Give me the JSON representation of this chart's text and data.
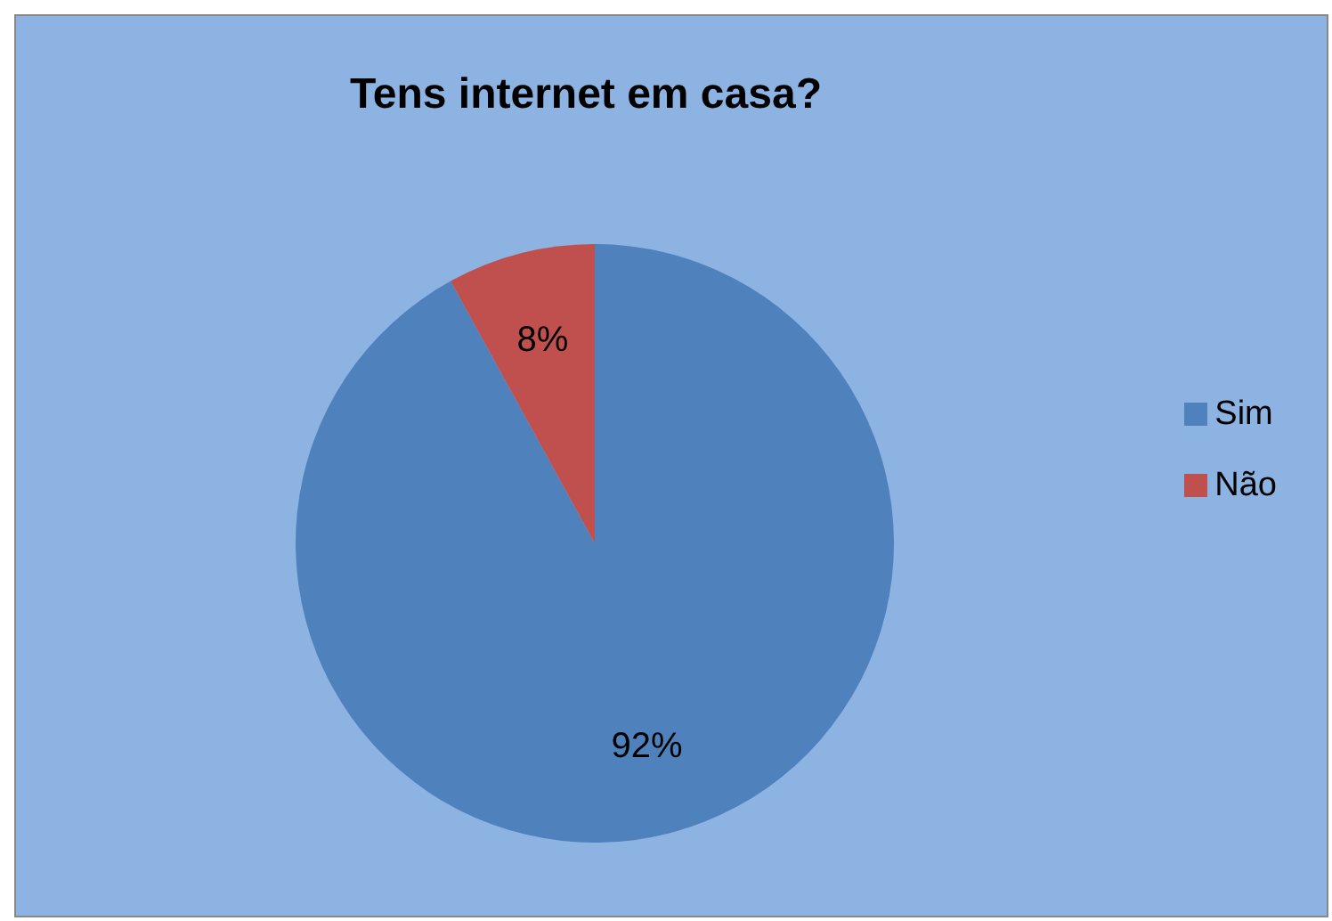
{
  "chart_data": {
    "type": "pie",
    "title": "Tens internet em casa?",
    "categories": [
      "Sim",
      "Não"
    ],
    "values": [
      92,
      8
    ],
    "colors": [
      "#4f81bd",
      "#c0504d"
    ],
    "value_labels": [
      "92%",
      "8%"
    ],
    "legend": "right"
  }
}
